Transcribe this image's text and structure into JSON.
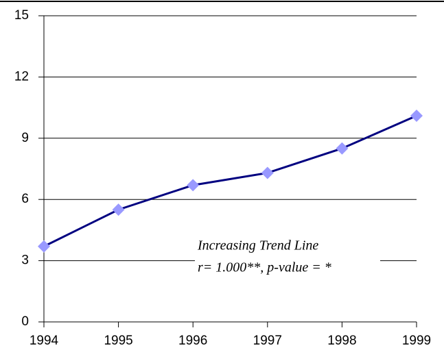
{
  "chart_data": {
    "type": "line",
    "x": [
      1994,
      1995,
      1996,
      1997,
      1998,
      1999
    ],
    "series": [
      {
        "color": "#000080",
        "marker_color": "#9999ff",
        "values": [
          3.7,
          5.5,
          6.7,
          7.3,
          8.5,
          10.1
        ]
      }
    ],
    "xlim": [
      1994,
      1999
    ],
    "xticks": [
      1994,
      1995,
      1996,
      1997,
      1998,
      1999
    ],
    "ylim": [
      0,
      15
    ],
    "yticks": [
      0,
      3,
      6,
      9,
      12,
      15
    ],
    "grid": true,
    "annotations": [
      "Increasing Trend Line",
      "r= 1.000**, p-value = *"
    ]
  }
}
